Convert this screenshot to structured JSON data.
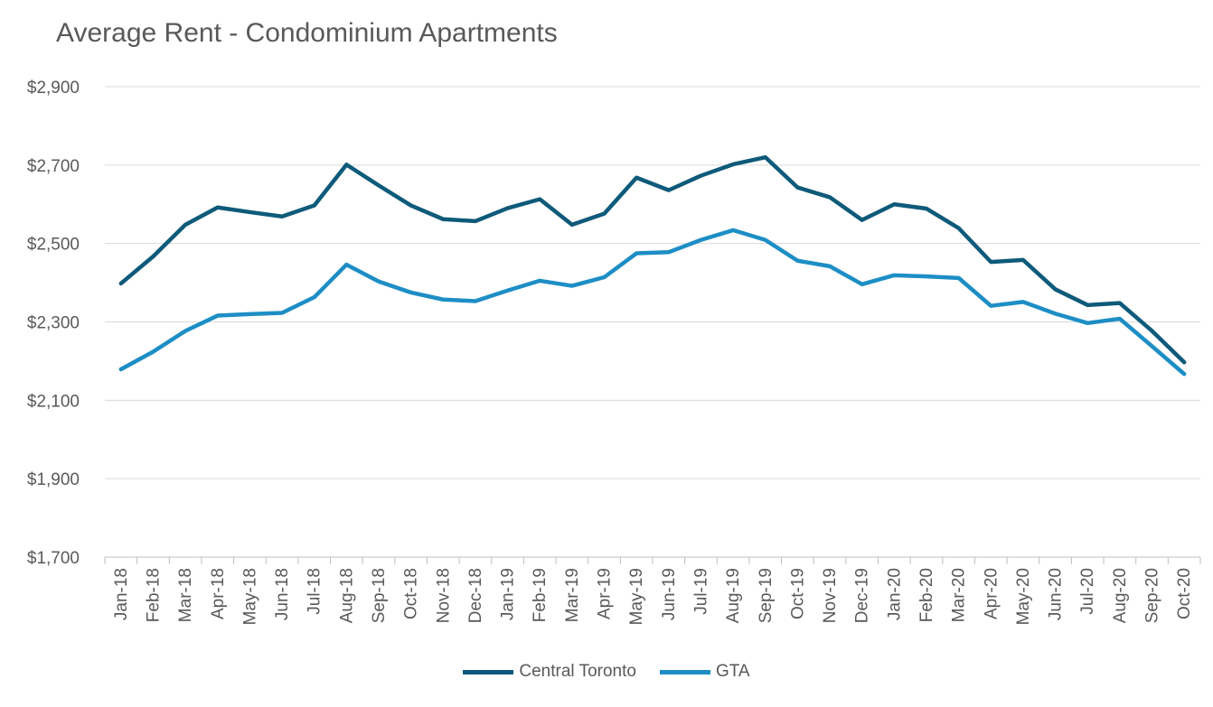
{
  "chart_data": {
    "type": "line",
    "title": "Average Rent - Condominium Apartments",
    "xlabel": "",
    "ylabel": "",
    "ylim": [
      1700,
      2900
    ],
    "yticks": [
      1700,
      1900,
      2100,
      2300,
      2500,
      2700,
      2900
    ],
    "ytick_labels": [
      "$1,700",
      "$1,900",
      "$2,100",
      "$2,300",
      "$2,500",
      "$2,700",
      "$2,900"
    ],
    "grid": "horizontal",
    "legend_position": "bottom",
    "categories": [
      "Jan-18",
      "Feb-18",
      "Mar-18",
      "Apr-18",
      "May-18",
      "Jun-18",
      "Jul-18",
      "Aug-18",
      "Sep-18",
      "Oct-18",
      "Nov-18",
      "Dec-18",
      "Jan-19",
      "Feb-19",
      "Mar-19",
      "Apr-19",
      "May-19",
      "Jun-19",
      "Jul-19",
      "Aug-19",
      "Sep-19",
      "Oct-19",
      "Nov-19",
      "Dec-19",
      "Jan-20",
      "Feb-20",
      "Mar-20",
      "Apr-20",
      "May-20",
      "Jun-20",
      "Jul-20",
      "Aug-20",
      "Sep-20",
      "Oct-20"
    ],
    "series": [
      {
        "name": "Central Toronto",
        "color": "#0e5a7a",
        "values": [
          2398,
          2467,
          2548,
          2592,
          2580,
          2569,
          2597,
          2701,
          2648,
          2597,
          2562,
          2557,
          2590,
          2613,
          2548,
          2576,
          2668,
          2636,
          2673,
          2702,
          2720,
          2643,
          2618,
          2560,
          2600,
          2589,
          2539,
          2453,
          2458,
          2383,
          2343,
          2348,
          2277,
          2197
        ]
      },
      {
        "name": "GTA",
        "color": "#1d8ec5",
        "values": [
          2179,
          2224,
          2277,
          2316,
          2320,
          2323,
          2363,
          2446,
          2403,
          2375,
          2357,
          2353,
          2380,
          2405,
          2392,
          2414,
          2475,
          2478,
          2509,
          2534,
          2509,
          2456,
          2442,
          2396,
          2419,
          2416,
          2412,
          2341,
          2351,
          2321,
          2297,
          2308,
          2238,
          2167
        ]
      }
    ]
  }
}
